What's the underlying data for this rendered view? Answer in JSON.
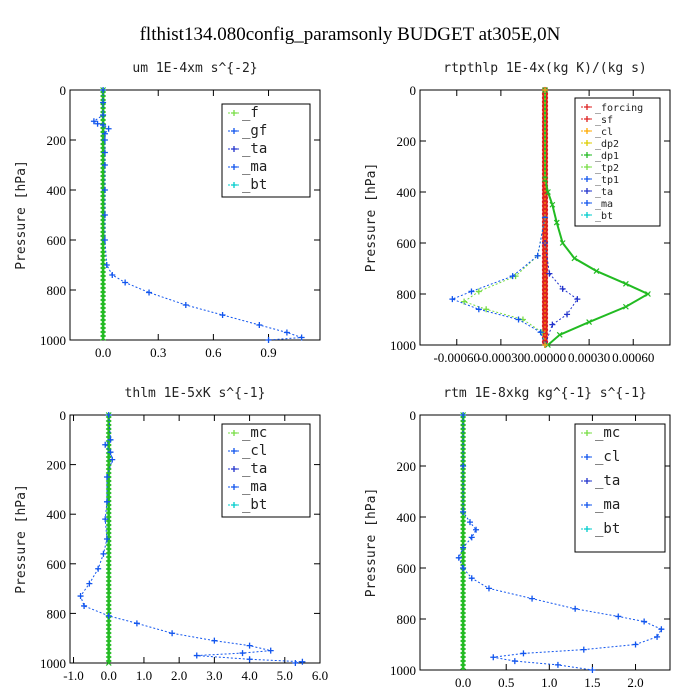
{
  "suptitle": "flthist134.080config_paramsonly  BUDGET at305E,0N",
  "colors": {
    "green": "#22bb22",
    "blue": "#1155ee",
    "red": "#dd2222",
    "navy": "#2233cc",
    "cyan": "#00cccc",
    "orange": "#ffaa00",
    "yellow": "#ddcc00",
    "lightgreen": "#77dd44"
  },
  "chart_data": [
    {
      "type": "line",
      "title": "um  1E-4xm s^{-2}",
      "ylabel": "Pressure [hPa]",
      "xlim": [
        -0.18,
        1.18
      ],
      "ylim": [
        1000,
        0
      ],
      "xticks": [
        "0.0",
        "0.3",
        "0.6",
        "0.9"
      ],
      "xtick_values": [
        0.0,
        0.3,
        0.6,
        0.9
      ],
      "yticks": [
        "0",
        "200",
        "400",
        "600",
        "800",
        "1000"
      ],
      "ytick_values": [
        0,
        200,
        400,
        600,
        800,
        1000
      ],
      "legend": [
        "_f",
        "_gf",
        "_ta",
        "_ma",
        "_bt"
      ],
      "series": [
        {
          "name": "_f",
          "color": "green",
          "points": [
            [
              0.0,
              0
            ],
            [
              0.0,
              100
            ],
            [
              0.0,
              200
            ],
            [
              0.0,
              300
            ],
            [
              0.0,
              400
            ],
            [
              0.0,
              500
            ],
            [
              0.0,
              600
            ],
            [
              0.0,
              700
            ],
            [
              0.0,
              800
            ],
            [
              0.0,
              900
            ],
            [
              0.0,
              1000
            ]
          ]
        },
        {
          "name": "_ta",
          "color": "blue",
          "points": [
            [
              0.0,
              0
            ],
            [
              0.0,
              50
            ],
            [
              0.0,
              100
            ],
            [
              -0.05,
              125
            ],
            [
              -0.03,
              135
            ],
            [
              0.0,
              140
            ],
            [
              0.03,
              155
            ],
            [
              0.01,
              175
            ],
            [
              0.01,
              200
            ],
            [
              0.01,
              250
            ],
            [
              0.01,
              300
            ],
            [
              0.01,
              400
            ],
            [
              0.01,
              500
            ],
            [
              0.01,
              600
            ],
            [
              0.02,
              700
            ],
            [
              0.05,
              740
            ],
            [
              0.12,
              770
            ],
            [
              0.25,
              810
            ],
            [
              0.45,
              860
            ],
            [
              0.65,
              900
            ],
            [
              0.85,
              940
            ],
            [
              1.0,
              970
            ],
            [
              1.08,
              990
            ],
            [
              0.9,
              1000
            ]
          ]
        }
      ]
    },
    {
      "type": "line",
      "title": "rtpthlp  1E-4x(kg K)/(kg s)",
      "ylabel": "Pressure [hPa]",
      "xlim": [
        -0.00085,
        0.00085
      ],
      "ylim": [
        1000,
        0
      ],
      "xticks": [
        "-0.00060",
        "-0.00030",
        "0.00000",
        "0.00030",
        "0.00060"
      ],
      "xtick_values": [
        -0.0006,
        -0.0003,
        0.0,
        0.0003,
        0.0006
      ],
      "yticks": [
        "0",
        "200",
        "400",
        "600",
        "800",
        "1000"
      ],
      "ytick_values": [
        0,
        200,
        400,
        600,
        800,
        1000
      ],
      "legend": [
        "_forcing",
        "_sf",
        "_cl",
        "_dp2",
        "_dp1",
        "_tp2",
        "_tp1",
        "_ta",
        "_ma",
        "_bt"
      ],
      "series": [
        {
          "name": "_forcing",
          "color": "red",
          "points": [
            [
              0.0,
              0
            ],
            [
              0.0,
              200
            ],
            [
              0.0,
              400
            ],
            [
              0.0,
              600
            ],
            [
              0.0,
              800
            ],
            [
              0.0,
              1000
            ]
          ]
        },
        {
          "name": "_dp1",
          "color": "green",
          "points": [
            [
              0.0,
              0
            ],
            [
              0.0,
              350
            ],
            [
              2e-05,
              400
            ],
            [
              5e-05,
              450
            ],
            [
              8e-05,
              520
            ],
            [
              0.00012,
              600
            ],
            [
              0.0002,
              660
            ],
            [
              0.00035,
              710
            ],
            [
              0.00055,
              760
            ],
            [
              0.0007,
              800
            ],
            [
              0.00055,
              850
            ],
            [
              0.0003,
              910
            ],
            [
              0.0001,
              960
            ],
            [
              2e-05,
              1000
            ]
          ]
        },
        {
          "name": "_tp2",
          "color": "lightgreen",
          "points": [
            [
              0.0,
              0
            ],
            [
              0.0,
              500
            ],
            [
              -5e-05,
              650
            ],
            [
              -0.0002,
              730
            ],
            [
              -0.00045,
              790
            ],
            [
              -0.00055,
              830
            ],
            [
              -0.0004,
              860
            ],
            [
              -0.00015,
              900
            ],
            [
              -2e-05,
              950
            ],
            [
              0.0,
              1000
            ]
          ]
        },
        {
          "name": "_tp1",
          "color": "blue",
          "points": [
            [
              0.0,
              0
            ],
            [
              0.0,
              500
            ],
            [
              -5e-05,
              650
            ],
            [
              -0.00022,
              730
            ],
            [
              -0.0005,
              790
            ],
            [
              -0.00063,
              820
            ],
            [
              -0.00045,
              860
            ],
            [
              -0.00018,
              900
            ],
            [
              -3e-05,
              950
            ],
            [
              0.0,
              1000
            ]
          ]
        },
        {
          "name": "_ta",
          "color": "navy",
          "points": [
            [
              0.0,
              0
            ],
            [
              0.0,
              600
            ],
            [
              3e-05,
              720
            ],
            [
              0.00012,
              780
            ],
            [
              0.00022,
              820
            ],
            [
              0.00015,
              880
            ],
            [
              5e-05,
              920
            ],
            [
              0.0,
              1000
            ]
          ]
        },
        {
          "name": "_cl",
          "color": "orange",
          "points": [
            [
              0.0,
              0
            ],
            [
              0.0,
              1000
            ]
          ]
        }
      ]
    },
    {
      "type": "line",
      "title": "thlm  1E-5xK s^{-1}",
      "ylabel": "Pressure [hPa]",
      "xlim": [
        -1.1,
        6.0
      ],
      "ylim": [
        1000,
        0
      ],
      "xticks": [
        "-1.0",
        "0.0",
        "1.0",
        "2.0",
        "3.0",
        "4.0",
        "5.0",
        "6.0"
      ],
      "xtick_values": [
        -1.0,
        0.0,
        1.0,
        2.0,
        3.0,
        4.0,
        5.0,
        6.0
      ],
      "yticks": [
        "0",
        "200",
        "400",
        "600",
        "800",
        "1000"
      ],
      "ytick_values": [
        0,
        200,
        400,
        600,
        800,
        1000
      ],
      "legend": [
        "_mc",
        "_cl",
        "_ta",
        "_ma",
        "_bt"
      ],
      "series": [
        {
          "name": "_mc",
          "color": "green",
          "points": [
            [
              0.0,
              0
            ],
            [
              0.0,
              200
            ],
            [
              0.0,
              400
            ],
            [
              0.0,
              600
            ],
            [
              0.0,
              800
            ],
            [
              0.0,
              1000
            ]
          ]
        },
        {
          "name": "_cl",
          "color": "blue",
          "points": [
            [
              0.0,
              0
            ],
            [
              0.05,
              100
            ],
            [
              -0.1,
              120
            ],
            [
              0.05,
              150
            ],
            [
              0.1,
              180
            ],
            [
              -0.05,
              250
            ],
            [
              -0.05,
              350
            ],
            [
              -0.1,
              420
            ],
            [
              -0.05,
              500
            ],
            [
              -0.15,
              560
            ],
            [
              -0.3,
              620
            ],
            [
              -0.55,
              680
            ],
            [
              -0.8,
              730
            ],
            [
              -0.7,
              770
            ],
            [
              0.0,
              810
            ],
            [
              0.8,
              840
            ],
            [
              1.8,
              880
            ],
            [
              3.0,
              910
            ],
            [
              4.0,
              930
            ],
            [
              4.6,
              950
            ],
            [
              3.8,
              960
            ],
            [
              2.5,
              970
            ],
            [
              4.0,
              985
            ],
            [
              5.5,
              995
            ],
            [
              5.3,
              1000
            ]
          ]
        }
      ]
    },
    {
      "type": "line",
      "title": "rtm  1E-8xkg kg^{-1} s^{-1}",
      "ylabel": "Pressure [hPa]",
      "xlim": [
        -0.5,
        2.4
      ],
      "ylim": [
        1000,
        0
      ],
      "xticks": [
        "0.0",
        "0.5",
        "1.0",
        "1.5",
        "2.0"
      ],
      "xtick_values": [
        0.0,
        0.5,
        1.0,
        1.5,
        2.0
      ],
      "yticks": [
        "0",
        "200",
        "400",
        "600",
        "800",
        "1000"
      ],
      "ytick_values": [
        0,
        200,
        400,
        600,
        800,
        1000
      ],
      "legend": [
        "_mc",
        "_cl",
        "_ta",
        "_ma",
        "_bt"
      ],
      "series": [
        {
          "name": "_mc",
          "color": "green",
          "points": [
            [
              0.0,
              0
            ],
            [
              0.0,
              200
            ],
            [
              0.0,
              400
            ],
            [
              0.0,
              600
            ],
            [
              0.0,
              800
            ],
            [
              0.0,
              1000
            ]
          ]
        },
        {
          "name": "_cl",
          "color": "blue",
          "points": [
            [
              0.0,
              0
            ],
            [
              0.0,
              200
            ],
            [
              0.0,
              380
            ],
            [
              0.08,
              420
            ],
            [
              0.15,
              450
            ],
            [
              0.1,
              480
            ],
            [
              0.0,
              520
            ],
            [
              -0.05,
              560
            ],
            [
              0.0,
              600
            ],
            [
              0.1,
              640
            ],
            [
              0.3,
              680
            ],
            [
              0.8,
              720
            ],
            [
              1.3,
              760
            ],
            [
              1.8,
              790
            ],
            [
              2.1,
              810
            ],
            [
              2.3,
              840
            ],
            [
              2.25,
              870
            ],
            [
              2.0,
              900
            ],
            [
              1.4,
              920
            ],
            [
              0.7,
              935
            ],
            [
              0.35,
              950
            ],
            [
              0.6,
              965
            ],
            [
              1.1,
              980
            ],
            [
              1.5,
              1000
            ]
          ]
        }
      ]
    }
  ]
}
